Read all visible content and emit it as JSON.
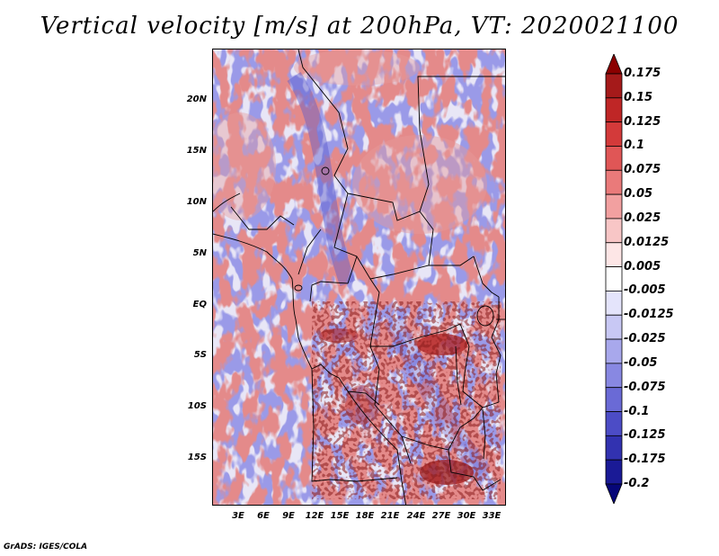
{
  "title": "Vertical velocity [m/s] at 200hPa, VT: 2020021100",
  "credit": "GrADS: IGES/COLA",
  "map": {
    "lat_labels": [
      "20N",
      "15N",
      "10N",
      "5N",
      "EQ",
      "5S",
      "10S",
      "15S"
    ],
    "lon_labels": [
      "3E",
      "6E",
      "9E",
      "12E",
      "15E",
      "18E",
      "21E",
      "24E",
      "27E",
      "30E",
      "33E"
    ]
  },
  "colorbar": {
    "labels": [
      "0.175",
      "0.15",
      "0.125",
      "0.1",
      "0.075",
      "0.05",
      "0.025",
      "0.0125",
      "0.005",
      "-0.005",
      "-0.0125",
      "-0.025",
      "-0.05",
      "-0.075",
      "-0.1",
      "-0.125",
      "-0.175",
      "-0.2"
    ],
    "colors": [
      "#8b0000",
      "#a51a1a",
      "#bf2626",
      "#d33a3a",
      "#e05656",
      "#ea7a7a",
      "#f2a0a0",
      "#f8c6c6",
      "#fde6e6",
      "#ffffff",
      "#e4e4fb",
      "#c8c8f4",
      "#a8a8ec",
      "#8888e2",
      "#6a6ad6",
      "#4c4cc6",
      "#3232b0",
      "#1a1a96",
      "#060678"
    ]
  },
  "colors": {
    "positive": "#c0392b",
    "negative": "#3b3bc4"
  }
}
